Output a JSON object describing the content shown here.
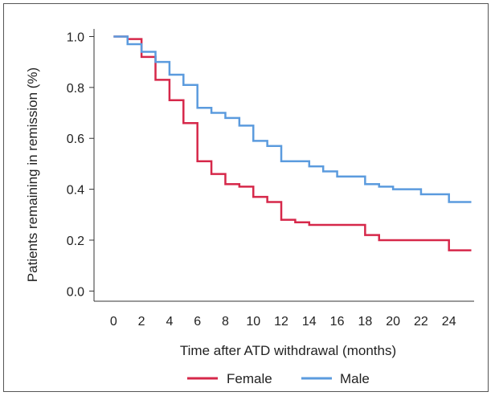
{
  "chart_data": {
    "type": "line",
    "title": "",
    "xlabel": "Time after ATD withdrawal (months)",
    "ylabel": "Patients remaining in remission (%)",
    "xlim": [
      -1.4,
      25.8
    ],
    "ylim": [
      -0.04,
      1.03
    ],
    "x_ticks": [
      0,
      2,
      4,
      6,
      8,
      10,
      12,
      14,
      16,
      18,
      20,
      22,
      24
    ],
    "x_tick_labels": [
      "0",
      "2",
      "4",
      "6",
      "8",
      "10",
      "12",
      "14",
      "16",
      "18",
      "20",
      "22",
      "24"
    ],
    "y_ticks": [
      0.0,
      0.2,
      0.4,
      0.6,
      0.8,
      1.0
    ],
    "y_tick_labels": [
      "0.0",
      "0.2",
      "0.4",
      "0.6",
      "0.8",
      "1.0"
    ],
    "grid": false,
    "step": true,
    "legend_position": "bottom",
    "series": [
      {
        "name": "Female",
        "color": "#d6284a",
        "points": [
          [
            0,
            1.0
          ],
          [
            1,
            0.99
          ],
          [
            2,
            0.92
          ],
          [
            3,
            0.83
          ],
          [
            4,
            0.75
          ],
          [
            5,
            0.66
          ],
          [
            6,
            0.51
          ],
          [
            7,
            0.46
          ],
          [
            8,
            0.42
          ],
          [
            9,
            0.41
          ],
          [
            10,
            0.37
          ],
          [
            11,
            0.35
          ],
          [
            12,
            0.28
          ],
          [
            13,
            0.27
          ],
          [
            14,
            0.26
          ],
          [
            18,
            0.22
          ],
          [
            19,
            0.2
          ],
          [
            24,
            0.16
          ],
          [
            25.6,
            0.16
          ]
        ]
      },
      {
        "name": "Male",
        "color": "#5b9bde",
        "points": [
          [
            0,
            1.0
          ],
          [
            1,
            0.97
          ],
          [
            2,
            0.94
          ],
          [
            3,
            0.9
          ],
          [
            4,
            0.85
          ],
          [
            5,
            0.81
          ],
          [
            6,
            0.72
          ],
          [
            7,
            0.7
          ],
          [
            8,
            0.68
          ],
          [
            9,
            0.65
          ],
          [
            10,
            0.59
          ],
          [
            11,
            0.57
          ],
          [
            12,
            0.51
          ],
          [
            14,
            0.49
          ],
          [
            15,
            0.47
          ],
          [
            16,
            0.45
          ],
          [
            18,
            0.42
          ],
          [
            19,
            0.41
          ],
          [
            20,
            0.4
          ],
          [
            22,
            0.38
          ],
          [
            24,
            0.35
          ],
          [
            25.6,
            0.35
          ]
        ]
      }
    ]
  }
}
